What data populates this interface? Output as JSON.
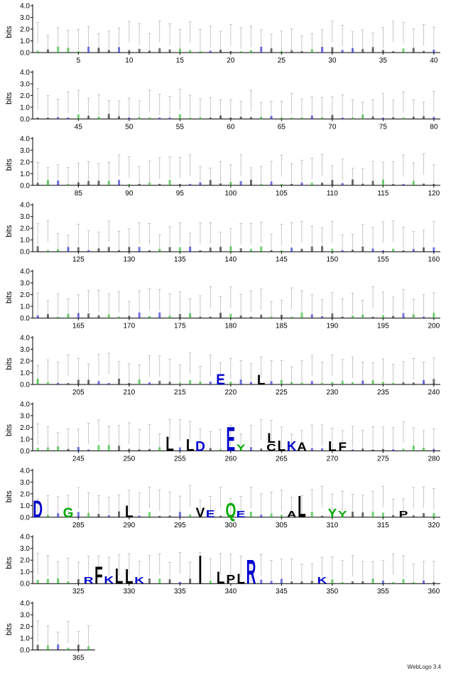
{
  "chart_data": {
    "type": "sequence-logo",
    "ylabel": "bits",
    "ylim": [
      0,
      4.0
    ],
    "yticks": [
      "0.0",
      "1.0",
      "2.0",
      "3.0",
      "4.0"
    ],
    "positions_per_row": 40,
    "total_positions": 366,
    "rows": [
      {
        "start": 1,
        "end": 40,
        "xticks": [
          5,
          10,
          15,
          20,
          25,
          30,
          35,
          40
        ]
      },
      {
        "start": 41,
        "end": 80,
        "xticks": [
          45,
          50,
          55,
          60,
          65,
          70,
          75,
          80
        ]
      },
      {
        "start": 81,
        "end": 120,
        "xticks": [
          85,
          90,
          95,
          100,
          105,
          110,
          115,
          120
        ]
      },
      {
        "start": 121,
        "end": 160,
        "xticks": [
          125,
          130,
          135,
          140,
          145,
          150,
          155,
          160
        ]
      },
      {
        "start": 161,
        "end": 200,
        "xticks": [
          165,
          170,
          175,
          180,
          185,
          190,
          195,
          200
        ]
      },
      {
        "start": 201,
        "end": 240,
        "xticks": [
          205,
          210,
          215,
          220,
          225,
          230,
          235,
          240
        ]
      },
      {
        "start": 241,
        "end": 280,
        "xticks": [
          245,
          250,
          255,
          260,
          265,
          270,
          275,
          280
        ]
      },
      {
        "start": 281,
        "end": 320,
        "xticks": [
          285,
          290,
          295,
          300,
          305,
          310,
          315,
          320
        ]
      },
      {
        "start": 321,
        "end": 360,
        "xticks": [
          325,
          330,
          335,
          340,
          345,
          350,
          355,
          360
        ]
      },
      {
        "start": 361,
        "end": 366,
        "xticks": [
          365
        ]
      }
    ],
    "colors": {
      "hydrophobic": "#000000",
      "polar": "#00aa00",
      "charged": "#0000cc",
      "error_bar": "#b0b0b0",
      "axis": "#000000"
    },
    "stacks": [
      {
        "pos": 219,
        "letters": [
          {
            "ch": "E",
            "bits": 1.0
          }
        ]
      },
      {
        "pos": 223,
        "letters": [
          {
            "ch": "L",
            "bits": 0.9
          }
        ]
      },
      {
        "pos": 254,
        "letters": [
          {
            "ch": "L",
            "bits": 1.3
          }
        ]
      },
      {
        "pos": 256,
        "letters": [
          {
            "ch": "L",
            "bits": 1.1
          }
        ]
      },
      {
        "pos": 257,
        "letters": [
          {
            "ch": "D",
            "bits": 0.9
          }
        ]
      },
      {
        "pos": 260,
        "letters": [
          {
            "ch": "E",
            "bits": 2.2
          }
        ]
      },
      {
        "pos": 261,
        "letters": [
          {
            "ch": "Y",
            "bits": 0.6
          }
        ]
      },
      {
        "pos": 264,
        "letters": [
          {
            "ch": "C",
            "bits": 0.7
          },
          {
            "ch": "L",
            "bits": 0.9
          }
        ]
      },
      {
        "pos": 265,
        "letters": [
          {
            "ch": "L",
            "bits": 1.0
          }
        ]
      },
      {
        "pos": 266,
        "letters": [
          {
            "ch": "K",
            "bits": 0.9
          }
        ]
      },
      {
        "pos": 267,
        "letters": [
          {
            "ch": "A",
            "bits": 0.8
          }
        ]
      },
      {
        "pos": 270,
        "letters": [
          {
            "ch": "L",
            "bits": 0.9
          }
        ]
      },
      {
        "pos": 271,
        "letters": [
          {
            "ch": "F",
            "bits": 0.8
          }
        ]
      },
      {
        "pos": 281,
        "letters": [
          {
            "ch": "D",
            "bits": 1.6
          }
        ]
      },
      {
        "pos": 284,
        "letters": [
          {
            "ch": "G",
            "bits": 0.9
          }
        ]
      },
      {
        "pos": 290,
        "letters": [
          {
            "ch": "L",
            "bits": 1.1
          }
        ]
      },
      {
        "pos": 297,
        "letters": [
          {
            "ch": "V",
            "bits": 0.9
          }
        ]
      },
      {
        "pos": 298,
        "letters": [
          {
            "ch": "E",
            "bits": 0.7
          }
        ]
      },
      {
        "pos": 300,
        "letters": [
          {
            "ch": "Q",
            "bits": 1.3
          }
        ]
      },
      {
        "pos": 301,
        "letters": [
          {
            "ch": "E",
            "bits": 0.6
          }
        ]
      },
      {
        "pos": 306,
        "letters": [
          {
            "ch": "A",
            "bits": 0.6
          }
        ]
      },
      {
        "pos": 307,
        "letters": [
          {
            "ch": "L",
            "bits": 2.0
          }
        ]
      },
      {
        "pos": 310,
        "letters": [
          {
            "ch": "Y",
            "bits": 0.8
          }
        ]
      },
      {
        "pos": 311,
        "letters": [
          {
            "ch": "Y",
            "bits": 0.6
          }
        ]
      },
      {
        "pos": 317,
        "letters": [
          {
            "ch": "P",
            "bits": 0.6
          }
        ]
      },
      {
        "pos": 326,
        "letters": [
          {
            "ch": "R",
            "bits": 0.6
          }
        ]
      },
      {
        "pos": 327,
        "letters": [
          {
            "ch": "F",
            "bits": 1.6
          }
        ]
      },
      {
        "pos": 328,
        "letters": [
          {
            "ch": "K",
            "bits": 0.7
          }
        ]
      },
      {
        "pos": 329,
        "letters": [
          {
            "ch": "L",
            "bits": 1.4
          }
        ]
      },
      {
        "pos": 330,
        "letters": [
          {
            "ch": "L",
            "bits": 1.3
          }
        ]
      },
      {
        "pos": 331,
        "letters": [
          {
            "ch": "K",
            "bits": 0.6
          }
        ]
      },
      {
        "pos": 337,
        "letters": [
          {
            "ch": "I",
            "bits": 2.6
          }
        ]
      },
      {
        "pos": 339,
        "letters": [
          {
            "ch": "L",
            "bits": 1.1
          }
        ]
      },
      {
        "pos": 340,
        "letters": [
          {
            "ch": "P",
            "bits": 0.8
          }
        ]
      },
      {
        "pos": 341,
        "letters": [
          {
            "ch": "L",
            "bits": 0.9
          }
        ]
      },
      {
        "pos": 342,
        "letters": [
          {
            "ch": "R",
            "bits": 2.2
          }
        ]
      },
      {
        "pos": 349,
        "letters": [
          {
            "ch": "K",
            "bits": 0.6
          }
        ]
      }
    ]
  },
  "footer": {
    "credit": "WebLogo 3.4"
  }
}
